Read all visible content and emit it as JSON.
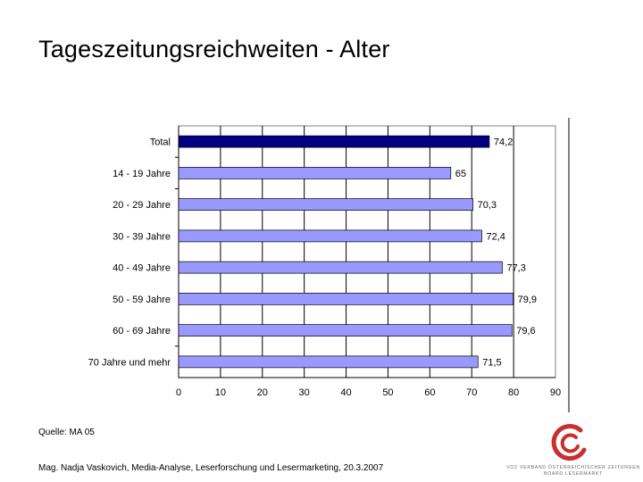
{
  "page": {
    "title": "Tageszeitungsreichweiten - Alter",
    "source": "Quelle: MA 05",
    "footer": "Mag. Nadja Vaskovich, Media-Analyse, Leserforschung und Lesermarketing, 20.3.2007",
    "logo_line1": "VOZ VERBAND ÖSTERREICHISCHER ZEITUNGEN",
    "logo_line2": "BOARD LESERMARKT"
  },
  "colors": {
    "highlight_bar": "#000080",
    "bar": "#9999FF",
    "bar_border": "#000000",
    "gridline": "#000000",
    "logo": "#C8302F"
  },
  "chart_data": {
    "type": "bar",
    "orientation": "horizontal",
    "title": "",
    "xlabel": "",
    "ylabel": "",
    "categories": [
      "Total",
      "14 - 19 Jahre",
      "20 - 29 Jahre",
      "30 - 39 Jahre",
      "40 - 49 Jahre",
      "50 - 59 Jahre",
      "60 - 69 Jahre",
      "70 Jahre und mehr"
    ],
    "values": [
      74.2,
      65,
      70.3,
      72.4,
      77.3,
      79.9,
      79.6,
      71.5
    ],
    "value_labels": [
      "74,2",
      "65",
      "70,3",
      "72,4",
      "77,3",
      "79,9",
      "79,6",
      "71,5"
    ],
    "highlight_index": 0,
    "xlim": [
      0,
      90
    ],
    "ticks": [
      0,
      10,
      20,
      30,
      40,
      50,
      60,
      70,
      80,
      90
    ],
    "grid": true
  }
}
